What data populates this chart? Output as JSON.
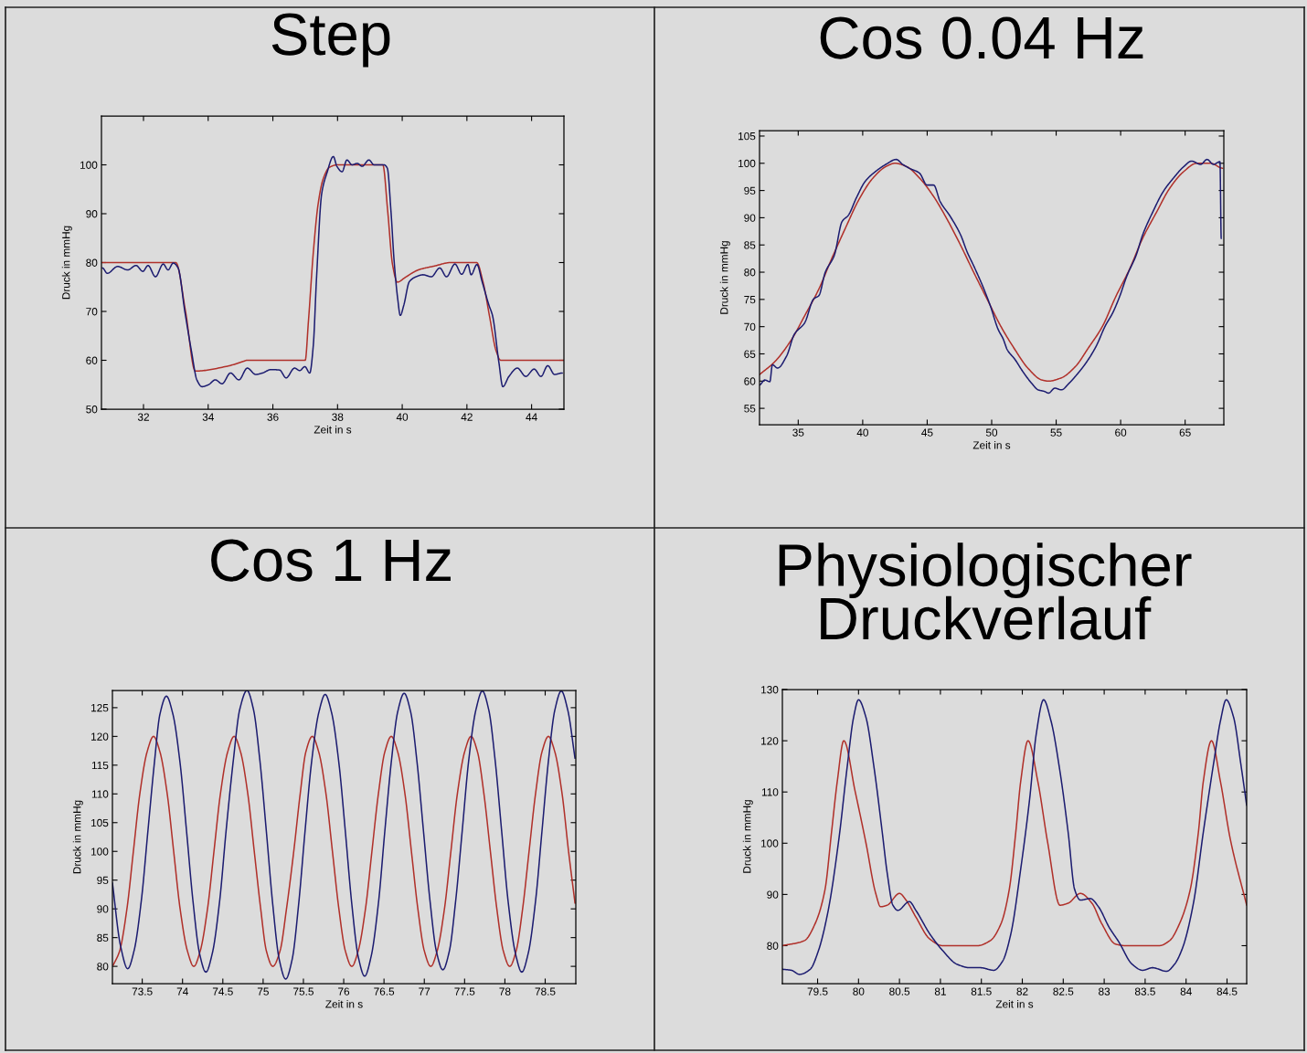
{
  "chart_data": [
    {
      "type": "line",
      "title": "Step",
      "xlabel": "Zeit in s",
      "ylabel": "Druck in mmHg",
      "xlim": [
        30.7,
        45
      ],
      "xticks": [
        32,
        34,
        36,
        38,
        40,
        42,
        44
      ],
      "ylim": [
        50,
        110
      ],
      "yticks": [
        50,
        60,
        70,
        80,
        90,
        100
      ],
      "series": [
        {
          "color": "#b0302a",
          "x": [
            30.7,
            33.0,
            33.3,
            33.6,
            34.6,
            35.1,
            35.2,
            37.0,
            37.1,
            37.25,
            37.4,
            37.55,
            37.75,
            38.0,
            39.4,
            39.55,
            39.7,
            39.85,
            40.1,
            40.5,
            41.0,
            41.5,
            42.3,
            42.5,
            42.7,
            42.9,
            43.05,
            45.0
          ],
          "values": [
            80,
            80,
            70,
            57.8,
            58.8,
            59.8,
            60,
            60,
            68,
            82,
            92,
            97,
            99.5,
            100,
            100,
            90.6,
            79.6,
            76,
            77,
            78.5,
            79.3,
            80,
            80,
            76,
            69,
            62,
            60,
            60
          ]
        },
        {
          "color": "#1c1c70",
          "x": [
            30.73,
            30.88,
            31.2,
            31.51,
            31.77,
            31.98,
            32.14,
            32.37,
            32.61,
            32.76,
            32.92,
            33.07,
            33.28,
            33.49,
            33.65,
            33.81,
            34.01,
            34.22,
            34.43,
            34.69,
            34.95,
            35.21,
            35.47,
            35.68,
            35.94,
            36.21,
            36.41,
            36.67,
            36.83,
            36.99,
            37.14,
            37.25,
            37.35,
            37.51,
            37.67,
            37.87,
            37.98,
            38.14,
            38.29,
            38.45,
            38.61,
            38.76,
            38.97,
            39.13,
            39.44,
            39.54,
            39.65,
            39.75,
            39.86,
            39.94,
            40.05,
            40.22,
            40.43,
            40.64,
            40.9,
            41.16,
            41.37,
            41.63,
            41.84,
            42.03,
            42.13,
            42.31,
            42.47,
            42.68,
            42.79,
            42.99,
            43.11,
            43.3,
            43.56,
            43.82,
            44.08,
            44.29,
            44.5,
            44.71,
            44.95
          ],
          "values": [
            78.9,
            77.8,
            79.2,
            78.5,
            79.4,
            78.2,
            79.4,
            77.1,
            79.7,
            78.5,
            79.9,
            78.9,
            69.9,
            61.6,
            56.0,
            54.6,
            55.0,
            56.0,
            55.2,
            57.4,
            56.0,
            58.4,
            57.1,
            57.4,
            58.1,
            58.0,
            56.4,
            58.4,
            57.9,
            58.7,
            57.4,
            63.0,
            76.8,
            94.1,
            98.3,
            101.7,
            99.7,
            98.6,
            101.0,
            100,
            100.3,
            99.7,
            101,
            100,
            100,
            99.3,
            90.7,
            80.3,
            72.6,
            69.2,
            71.3,
            76.1,
            77.1,
            77.5,
            77.1,
            78.9,
            77.1,
            79.7,
            77.6,
            79.6,
            77.5,
            79.6,
            76.1,
            71.3,
            69.2,
            59.5,
            54.6,
            56.7,
            58.4,
            56.7,
            58.2,
            56.7,
            58.9,
            57.1,
            57.4
          ]
        }
      ]
    },
    {
      "type": "line",
      "title": "Cos 0.04 Hz",
      "xlabel": "Zeit in s",
      "ylabel": "Druck in mmHg",
      "xlim": [
        32,
        68
      ],
      "xticks": [
        35,
        40,
        45,
        50,
        55,
        60,
        65
      ],
      "ylim": [
        52,
        106
      ],
      "yticks": [
        55,
        60,
        65,
        70,
        75,
        80,
        85,
        90,
        95,
        100,
        105
      ],
      "series": [
        {
          "color": "#b0302a",
          "x": [
            32.0,
            33.2,
            34.5,
            35.5,
            36.6,
            37.6,
            38.7,
            39.7,
            40.8,
            41.8,
            42.5,
            43.4,
            44.4,
            45.5,
            46.5,
            47.6,
            48.6,
            49.7,
            50.7,
            51.8,
            52.8,
            53.9,
            54.4,
            55.4,
            56.5,
            57.5,
            58.6,
            59.6,
            60.7,
            61.7,
            62.8,
            63.8,
            64.9,
            65.9,
            67.0,
            67.9
          ],
          "values": [
            61.2,
            63.6,
            67.7,
            72.0,
            76.9,
            82.5,
            88.3,
            93.3,
            97.3,
            99.4,
            100,
            99.4,
            97.3,
            93.9,
            89.9,
            84.9,
            80.0,
            74.8,
            70.1,
            65.8,
            62.4,
            60.2,
            60,
            60.6,
            62.7,
            66.1,
            70.1,
            75.4,
            80.6,
            86.2,
            91.1,
            95.4,
            98.5,
            100,
            100,
            99.1
          ]
        },
        {
          "color": "#1c1c70",
          "x": [
            32.0,
            32.4,
            32.8,
            33.0,
            33.4,
            34.1,
            34.7,
            35.5,
            36.2,
            36.6,
            37.1,
            37.8,
            38.4,
            38.9,
            39.5,
            40.2,
            41.0,
            41.8,
            42.6,
            43.1,
            43.6,
            44.4,
            45.0,
            45.5,
            46.0,
            46.8,
            47.6,
            48.1,
            48.6,
            49.4,
            49.9,
            50.5,
            50.9,
            51.2,
            51.8,
            52.4,
            53.1,
            53.6,
            54.1,
            54.4,
            54.9,
            55.4,
            56.0,
            56.5,
            57.3,
            58.1,
            58.8,
            59.4,
            59.9,
            60.5,
            61.2,
            61.7,
            62.5,
            63.3,
            64.1,
            64.9,
            65.5,
            66.2,
            66.7,
            67.2,
            67.7,
            67.8
          ],
          "values": [
            59.3,
            60.2,
            59.9,
            63.0,
            62.4,
            64.6,
            68.6,
            70.7,
            75.1,
            75.7,
            80.0,
            83.1,
            89.3,
            90.5,
            93.6,
            96.7,
            98.5,
            99.8,
            100.7,
            99.8,
            99.1,
            98.2,
            96.0,
            96.0,
            93.0,
            90.2,
            86.8,
            83.7,
            81.2,
            76.9,
            73.8,
            69.5,
            67.7,
            65.8,
            64.0,
            61.8,
            59.6,
            58.4,
            58.1,
            57.8,
            58.7,
            58.4,
            59.6,
            60.9,
            63.3,
            66.4,
            70.1,
            72.6,
            75.4,
            79.4,
            83.1,
            86.8,
            91.1,
            94.8,
            97.3,
            99.4,
            100.4,
            99.8,
            100.7,
            99.8,
            100.3,
            86.2
          ]
        }
      ]
    },
    {
      "type": "line",
      "title": "Cos 1 Hz",
      "xlabel": "Zeit in s",
      "ylabel": "Druck in mmHg",
      "xlim": [
        73.13,
        78.88
      ],
      "xticks": [
        73.5,
        74,
        74.5,
        75,
        75.5,
        76,
        76.5,
        77,
        77.5,
        78,
        78.5
      ],
      "ylim": [
        77,
        128
      ],
      "yticks": [
        80,
        85,
        90,
        95,
        100,
        105,
        110,
        115,
        120,
        125
      ],
      "series": [
        {
          "color": "#b0302a",
          "x": [
            73.14,
            73.22,
            73.31,
            73.39,
            73.47,
            73.56,
            73.64,
            73.72,
            73.81,
            73.89,
            73.97,
            74.06,
            74.14,
            74.22,
            74.31,
            74.39,
            74.47,
            74.56,
            74.64,
            74.72,
            74.81,
            74.89,
            74.97,
            75.04,
            75.12,
            75.21,
            75.29,
            75.38,
            75.46,
            75.53,
            75.61,
            75.69,
            75.78,
            75.86,
            75.94,
            76.02,
            76.1,
            76.18,
            76.27,
            76.35,
            76.43,
            76.51,
            76.59,
            76.67,
            76.76,
            76.84,
            76.92,
            77.0,
            77.08,
            77.16,
            77.25,
            77.33,
            77.41,
            77.5,
            77.58,
            77.66,
            77.74,
            77.82,
            77.9,
            77.98,
            78.06,
            78.14,
            78.22,
            78.3,
            78.38,
            78.46,
            78.54,
            78.62,
            78.71,
            78.79,
            78.87
          ],
          "values": [
            80.2,
            82.7,
            90,
            100,
            110,
            117.3,
            120,
            117.3,
            110,
            100,
            90,
            82.7,
            80,
            82.7,
            90,
            100,
            110,
            117.3,
            120,
            117.3,
            110,
            100,
            90,
            82.7,
            80,
            82.7,
            90,
            100,
            110,
            117.3,
            120,
            117.3,
            110,
            100,
            90,
            82.7,
            80,
            82.7,
            90,
            100,
            110,
            117.3,
            120,
            117.3,
            110,
            100,
            90,
            82.7,
            80,
            82.7,
            90,
            100,
            110,
            117.3,
            120,
            117.3,
            110,
            100,
            90,
            82.7,
            80,
            82.7,
            90,
            100,
            110,
            117.3,
            120,
            117.3,
            110,
            100,
            91
          ]
        },
        {
          "color": "#1c1c70",
          "x": [
            73.13,
            73.23,
            73.32,
            73.4,
            73.49,
            73.57,
            73.65,
            73.72,
            73.8,
            73.88,
            73.97,
            74.05,
            74.13,
            74.21,
            74.29,
            74.37,
            74.46,
            74.54,
            74.63,
            74.71,
            74.8,
            74.88,
            74.96,
            75.04,
            75.12,
            75.2,
            75.28,
            75.36,
            75.44,
            75.52,
            75.6,
            75.69,
            75.77,
            75.85,
            75.94,
            76.02,
            76.1,
            76.18,
            76.26,
            76.34,
            76.43,
            76.51,
            76.59,
            76.67,
            76.75,
            76.83,
            76.91,
            76.99,
            77.07,
            77.15,
            77.23,
            77.31,
            77.39,
            77.47,
            77.55,
            77.64,
            77.72,
            77.8,
            77.88,
            77.96,
            78.04,
            78.13,
            78.21,
            78.29,
            78.38,
            78.46,
            78.54,
            78.62,
            78.7,
            78.78,
            78.87
          ],
          "values": [
            94.5,
            83.6,
            79.6,
            82.8,
            91.6,
            103.5,
            115.3,
            123.9,
            127.0,
            123.9,
            115.3,
            103.5,
            91.3,
            82.3,
            79.0,
            82.3,
            91.3,
            103.5,
            115.8,
            124.7,
            128.0,
            124.7,
            115.8,
            103.5,
            90.7,
            81.2,
            77.8,
            81.2,
            90.7,
            103.5,
            115.4,
            124.1,
            127.3,
            124.1,
            115.4,
            103.5,
            90.9,
            81.7,
            78.3,
            81.7,
            90.9,
            103.5,
            115.5,
            124.3,
            127.5,
            124.3,
            115.5,
            103.5,
            91.5,
            82.6,
            79.4,
            82.6,
            91.5,
            103.5,
            115.7,
            124.6,
            127.9,
            124.6,
            115.7,
            103.5,
            91.3,
            82.3,
            79.0,
            82.3,
            91.3,
            103.5,
            115.7,
            124.6,
            127.9,
            124.6,
            116.2
          ]
        }
      ]
    },
    {
      "type": "line",
      "title": "Physiologischer\nDruckverlauf",
      "xlabel": "Zeit in s",
      "ylabel": "Druck in mmHg",
      "xlim": [
        79.07,
        84.74
      ],
      "xticks": [
        79.5,
        80,
        80.5,
        81,
        81.5,
        82,
        82.5,
        83,
        83.5,
        84,
        84.5
      ],
      "ylim": [
        72.6,
        130
      ],
      "yticks": [
        80,
        90,
        100,
        110,
        120,
        130
      ],
      "series": [
        {
          "color": "#b0302a",
          "x": [
            79.07,
            79.34,
            79.47,
            79.59,
            79.67,
            79.74,
            79.82,
            79.96,
            80.09,
            80.21,
            80.27,
            80.35,
            80.5,
            80.58,
            80.7,
            80.87,
            81.03,
            81.45,
            81.61,
            81.74,
            81.84,
            81.92,
            81.98,
            82.07,
            82.19,
            82.31,
            82.46,
            82.56,
            82.71,
            82.85,
            82.97,
            83.14,
            83.26,
            83.67,
            83.8,
            83.92,
            84.05,
            84.15,
            84.21,
            84.31,
            84.42,
            84.54,
            84.74
          ],
          "values": [
            80,
            81.0,
            84.3,
            90.9,
            102.1,
            112,
            120,
            110,
            100.1,
            90.2,
            87.6,
            87.9,
            90.2,
            88.9,
            85.6,
            81.3,
            80,
            80,
            81.0,
            84.3,
            90.9,
            102.1,
            112,
            120,
            112,
            100.1,
            87.9,
            88.3,
            90.2,
            88.3,
            84.3,
            80.3,
            80,
            80,
            81.0,
            84.3,
            90.9,
            102.1,
            112,
            120,
            112,
            100.8,
            87.9
          ]
        },
        {
          "color": "#1c1c70",
          "x": [
            79.07,
            79.18,
            79.28,
            79.41,
            79.51,
            79.63,
            79.76,
            79.86,
            79.94,
            80.0,
            80.09,
            80.19,
            80.29,
            80.35,
            80.42,
            80.48,
            80.62,
            80.7,
            80.87,
            81.03,
            81.2,
            81.36,
            81.49,
            81.65,
            81.76,
            81.86,
            81.98,
            82.09,
            82.17,
            82.26,
            82.35,
            82.46,
            82.56,
            82.64,
            82.71,
            82.83,
            82.93,
            83.06,
            83.18,
            83.34,
            83.47,
            83.59,
            83.76,
            83.86,
            83.96,
            84.09,
            84.21,
            84.34,
            84.42,
            84.49,
            84.58,
            84.67,
            84.74
          ],
          "values": [
            75.4,
            75.2,
            74.4,
            75.4,
            79.0,
            86.9,
            100.8,
            114.7,
            124.6,
            128.0,
            124.6,
            114.7,
            102.1,
            94.2,
            87.9,
            86.9,
            88.6,
            86.9,
            82.3,
            79.0,
            76.4,
            75.7,
            75.7,
            75.2,
            77.0,
            82.3,
            94.9,
            108.7,
            121.3,
            128.0,
            123.9,
            114.0,
            102.1,
            90.9,
            88.9,
            89.2,
            87.6,
            83.6,
            80.7,
            76.4,
            75.2,
            75.7,
            75.0,
            76.4,
            79.7,
            88.3,
            102.1,
            116.0,
            123.9,
            128.0,
            124.6,
            115.3,
            107.4
          ]
        }
      ]
    }
  ]
}
